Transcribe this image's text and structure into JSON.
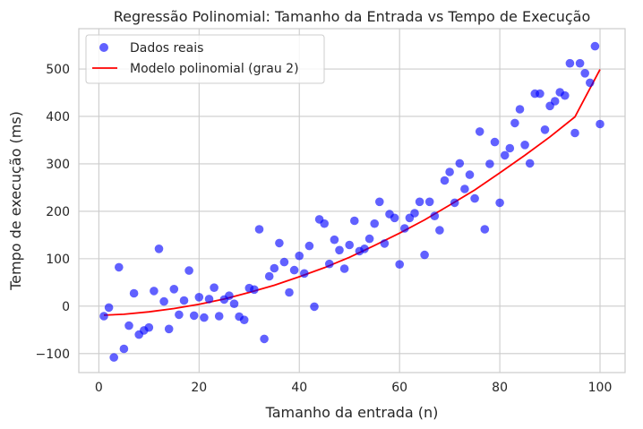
{
  "chart_data": {
    "type": "scatter",
    "title": "Regressão Polinomial: Tamanho da Entrada vs Tempo de Execução",
    "xlabel": "Tamanho da entrada (n)",
    "ylabel": "Tempo de execução (ms)",
    "xlim": [
      -4,
      105
    ],
    "ylim": [
      -140,
      585
    ],
    "xticks": [
      0,
      20,
      40,
      60,
      80,
      100
    ],
    "yticks": [
      -100,
      0,
      100,
      200,
      300,
      400,
      500
    ],
    "grid": true,
    "legend_position": "top-left",
    "series": [
      {
        "name": "Dados reais",
        "kind": "scatter",
        "color": "#0000ff",
        "points": [
          [
            1,
            -21
          ],
          [
            2,
            -3
          ],
          [
            3,
            -108
          ],
          [
            4,
            82
          ],
          [
            5,
            -90
          ],
          [
            6,
            -41
          ],
          [
            7,
            27
          ],
          [
            8,
            -60
          ],
          [
            9,
            -51
          ],
          [
            10,
            -45
          ],
          [
            11,
            32
          ],
          [
            12,
            121
          ],
          [
            13,
            10
          ],
          [
            14,
            -48
          ],
          [
            15,
            36
          ],
          [
            16,
            -18
          ],
          [
            17,
            12
          ],
          [
            18,
            75
          ],
          [
            19,
            -20
          ],
          [
            20,
            19
          ],
          [
            21,
            -24
          ],
          [
            22,
            15
          ],
          [
            23,
            39
          ],
          [
            24,
            -21
          ],
          [
            25,
            14
          ],
          [
            26,
            22
          ],
          [
            27,
            5
          ],
          [
            28,
            -22
          ],
          [
            29,
            -29
          ],
          [
            30,
            38
          ],
          [
            31,
            35
          ],
          [
            32,
            162
          ],
          [
            33,
            -69
          ],
          [
            34,
            63
          ],
          [
            35,
            80
          ],
          [
            36,
            133
          ],
          [
            37,
            93
          ],
          [
            38,
            29
          ],
          [
            39,
            76
          ],
          [
            40,
            106
          ],
          [
            41,
            69
          ],
          [
            42,
            127
          ],
          [
            43,
            -1
          ],
          [
            44,
            183
          ],
          [
            45,
            174
          ],
          [
            46,
            89
          ],
          [
            47,
            140
          ],
          [
            48,
            118
          ],
          [
            49,
            79
          ],
          [
            50,
            129
          ],
          [
            51,
            180
          ],
          [
            52,
            116
          ],
          [
            53,
            121
          ],
          [
            54,
            142
          ],
          [
            55,
            174
          ],
          [
            56,
            220
          ],
          [
            57,
            132
          ],
          [
            58,
            194
          ],
          [
            59,
            186
          ],
          [
            60,
            88
          ],
          [
            61,
            164
          ],
          [
            62,
            186
          ],
          [
            63,
            196
          ],
          [
            64,
            220
          ],
          [
            65,
            108
          ],
          [
            66,
            220
          ],
          [
            67,
            190
          ],
          [
            68,
            160
          ],
          [
            69,
            265
          ],
          [
            70,
            283
          ],
          [
            71,
            218
          ],
          [
            72,
            301
          ],
          [
            73,
            247
          ],
          [
            74,
            277
          ],
          [
            75,
            227
          ],
          [
            76,
            368
          ],
          [
            77,
            162
          ],
          [
            78,
            300
          ],
          [
            79,
            346
          ],
          [
            80,
            218
          ],
          [
            81,
            318
          ],
          [
            82,
            333
          ],
          [
            83,
            386
          ],
          [
            84,
            415
          ],
          [
            85,
            340
          ],
          [
            86,
            301
          ],
          [
            87,
            448
          ],
          [
            88,
            448
          ],
          [
            89,
            372
          ],
          [
            90,
            422
          ],
          [
            91,
            432
          ],
          [
            92,
            451
          ],
          [
            93,
            444
          ],
          [
            94,
            512
          ],
          [
            95,
            365
          ],
          [
            96,
            512
          ],
          [
            97,
            491
          ],
          [
            98,
            471
          ],
          [
            99,
            548
          ],
          [
            100,
            384
          ]
        ]
      },
      {
        "name": "Modelo polinomial (grau 2)",
        "kind": "line",
        "color": "#ff0000",
        "x": [
          1,
          5,
          10,
          15,
          20,
          25,
          30,
          35,
          40,
          45,
          50,
          55,
          60,
          65,
          70,
          75,
          80,
          85,
          90,
          95,
          100
        ],
        "y": [
          -19,
          -17,
          -12,
          -5,
          4,
          15,
          29,
          44,
          62,
          81,
          103,
          128,
          154,
          182,
          213,
          245,
          281,
          318,
          357,
          399,
          499
        ]
      }
    ]
  }
}
